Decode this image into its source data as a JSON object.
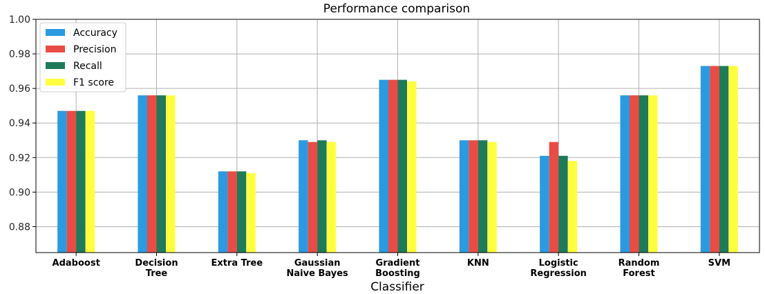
{
  "chart_data": {
    "type": "bar",
    "title": "Performance comparison",
    "xlabel": "Classifier",
    "ylabel": "",
    "ylim": [
      0.865,
      1.0
    ],
    "yticks": [
      "0.88",
      "0.90",
      "0.92",
      "0.94",
      "0.96",
      "0.98",
      "1.00"
    ],
    "grid": true,
    "legend_position": "top-left",
    "categories": [
      [
        "Adaboost"
      ],
      [
        "Decision",
        "Tree"
      ],
      [
        "Extra Tree"
      ],
      [
        "Gaussian",
        "Naive Bayes"
      ],
      [
        "Gradient",
        "Boosting"
      ],
      [
        "KNN"
      ],
      [
        "Logistic",
        "Regression"
      ],
      [
        "Random",
        "Forest"
      ],
      [
        "SVM"
      ]
    ],
    "series": [
      {
        "name": "Accuracy",
        "color": "#2b9ae0",
        "values": [
          0.947,
          0.956,
          0.912,
          0.93,
          0.965,
          0.93,
          0.921,
          0.956,
          0.973
        ]
      },
      {
        "name": "Precision",
        "color": "#e84c44",
        "values": [
          0.947,
          0.956,
          0.912,
          0.929,
          0.965,
          0.93,
          0.929,
          0.956,
          0.973
        ]
      },
      {
        "name": "Recall",
        "color": "#1f7a5a",
        "values": [
          0.947,
          0.956,
          0.912,
          0.93,
          0.965,
          0.93,
          0.921,
          0.956,
          0.973
        ]
      },
      {
        "name": "F1 score",
        "color": "#ffff40",
        "values": [
          0.947,
          0.956,
          0.911,
          0.929,
          0.964,
          0.929,
          0.918,
          0.956,
          0.973
        ]
      }
    ]
  }
}
